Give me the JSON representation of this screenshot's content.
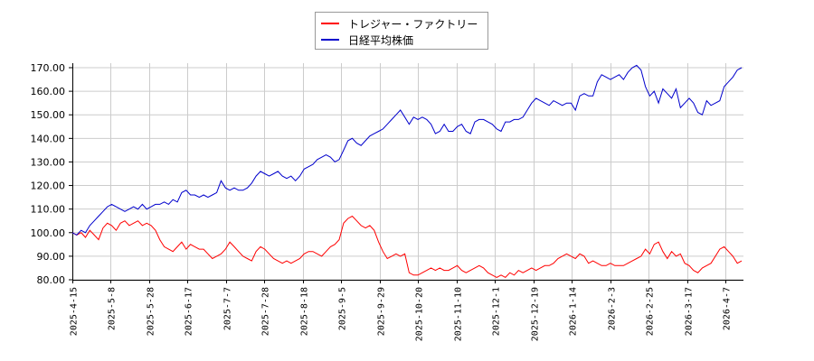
{
  "chart_data": {
    "type": "line",
    "title": "",
    "xlabel": "",
    "ylabel": "",
    "ylim": [
      80,
      170
    ],
    "yticks": [
      "80.00",
      "90.00",
      "100.00",
      "110.00",
      "120.00",
      "130.00",
      "140.00",
      "150.00",
      "160.00",
      "170.00"
    ],
    "xticks": [
      "2025-4-15",
      "2025-5-8",
      "2025-5-28",
      "2025-6-17",
      "2025-7-7",
      "2025-7-28",
      "2025-8-18",
      "2025-9-5",
      "2025-9-29",
      "2025-10-20",
      "2025-11-10",
      "2025-12-1",
      "2025-12-19",
      "2026-1-14",
      "2026-2-3",
      "2026-2-25",
      "2026-3-17",
      "2026-4-7"
    ],
    "grid": true,
    "legend_position": "top-center",
    "series": [
      {
        "name": "トレジャー・ファクトリー",
        "color": "#ff0000",
        "values": [
          100,
          99,
          100,
          98,
          101,
          99,
          97,
          102,
          104,
          103,
          101,
          104,
          105,
          103,
          104,
          105,
          103,
          104,
          103,
          101,
          97,
          94,
          93,
          92,
          94,
          96,
          93,
          95,
          94,
          93,
          93,
          91,
          89,
          90,
          91,
          93,
          96,
          94,
          92,
          90,
          89,
          88,
          92,
          94,
          93,
          91,
          89,
          88,
          87,
          88,
          87,
          88,
          89,
          91,
          92,
          92,
          91,
          90,
          92,
          94,
          95,
          97,
          104,
          106,
          107,
          105,
          103,
          102,
          103,
          101,
          96,
          92,
          89,
          90,
          91,
          90,
          91,
          83,
          82,
          82,
          83,
          84,
          85,
          84,
          85,
          84,
          84,
          85,
          86,
          84,
          83,
          84,
          85,
          86,
          85,
          83,
          82,
          81,
          82,
          81,
          83,
          82,
          84,
          83,
          84,
          85,
          84,
          85,
          86,
          86,
          87,
          89,
          90,
          91,
          90,
          89,
          91,
          90,
          87,
          88,
          87,
          86,
          86,
          87,
          86,
          86,
          86,
          87,
          88,
          89,
          90,
          93,
          91,
          95,
          96,
          92,
          89,
          92,
          90,
          91,
          87,
          86,
          84,
          83,
          85,
          86,
          87,
          90,
          93,
          94,
          92,
          90,
          87,
          88
        ],
        "last": 88
      },
      {
        "name": "日経平均株価",
        "color": "#0000cc",
        "values": [
          100,
          99,
          101,
          100,
          103,
          105,
          107,
          109,
          111,
          112,
          111,
          110,
          109,
          110,
          111,
          110,
          112,
          110,
          111,
          112,
          112,
          113,
          112,
          114,
          113,
          117,
          118,
          116,
          116,
          115,
          116,
          115,
          116,
          117,
          122,
          119,
          118,
          119,
          118,
          118,
          119,
          121,
          124,
          126,
          125,
          124,
          125,
          126,
          124,
          123,
          124,
          122,
          124,
          127,
          128,
          129,
          131,
          132,
          133,
          132,
          130,
          131,
          135,
          139,
          140,
          138,
          137,
          139,
          141,
          142,
          143,
          144,
          146,
          148,
          150,
          152,
          149,
          146,
          149,
          148,
          149,
          148,
          146,
          142,
          143,
          146,
          143,
          143,
          145,
          146,
          143,
          142,
          147,
          148,
          148,
          147,
          146,
          144,
          143,
          147,
          147,
          148,
          148,
          149,
          152,
          155,
          157,
          156,
          155,
          154,
          156,
          155,
          154,
          155,
          155,
          152,
          158,
          159,
          158,
          158,
          164,
          167,
          166,
          165,
          166,
          167,
          165,
          168,
          170,
          171,
          169,
          162,
          158,
          160,
          155,
          161,
          159,
          157,
          161,
          153,
          155,
          157,
          155,
          151,
          150,
          156,
          154,
          155,
          156,
          162,
          164,
          166,
          169,
          170
        ],
        "last": 170
      }
    ]
  },
  "legend": {
    "items": [
      {
        "label": "トレジャー・ファクトリー",
        "color": "#ff0000"
      },
      {
        "label": "日経平均株価",
        "color": "#0000cc"
      }
    ]
  }
}
